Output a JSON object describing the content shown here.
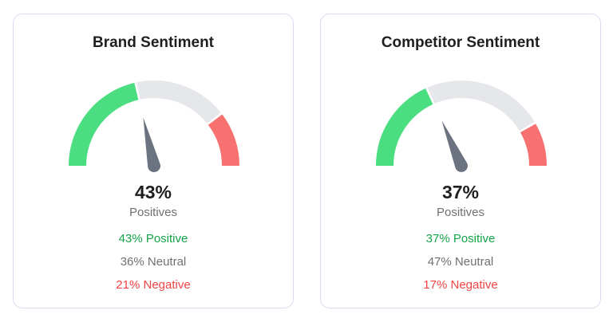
{
  "colors": {
    "positive": "#4ade80",
    "neutral_track": "#e5e7eb",
    "negative": "#f87171",
    "needle": "#6b7280",
    "positive_text": "#16a34a",
    "negative_text": "#ef4444"
  },
  "cards": [
    {
      "title": "Brand Sentiment",
      "value_label": "43%",
      "sub_label": "Positives",
      "positive": 43,
      "neutral": 36,
      "negative": 21,
      "positive_text": "43% Positive",
      "neutral_text": "36% Neutral",
      "negative_text": "21% Negative"
    },
    {
      "title": "Competitor Sentiment",
      "value_label": "37%",
      "sub_label": "Positives",
      "positive": 37,
      "neutral": 47,
      "negative": 17,
      "positive_text": "37% Positive",
      "neutral_text": "47% Neutral",
      "negative_text": "17% Negative"
    }
  ]
}
